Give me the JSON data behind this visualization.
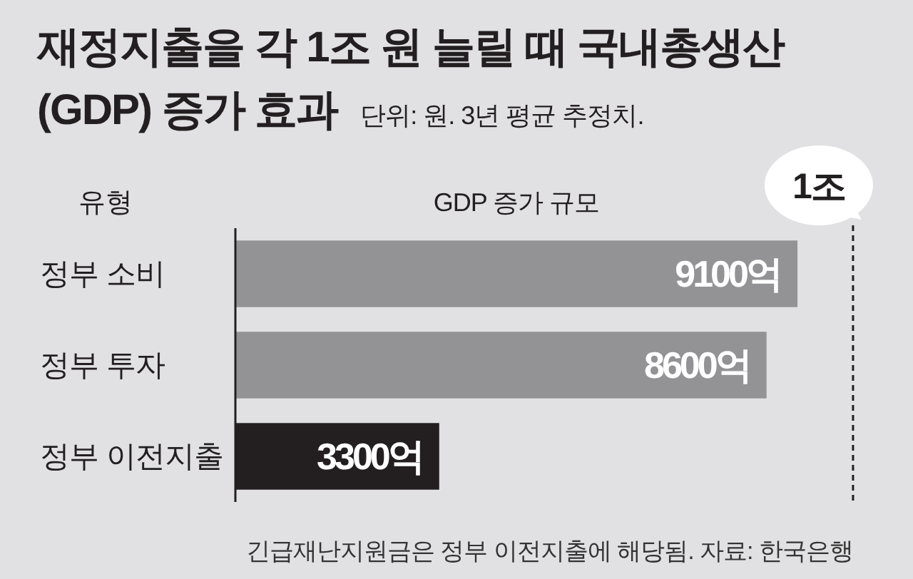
{
  "chart_data": {
    "type": "bar",
    "orientation": "horizontal",
    "title": "재정지출을 각 1조 원 늘릴 때 국내총생산 (GDP) 증가 효과",
    "subtitle": "단위: 원. 3년 평균 추정치.",
    "ylabel": "유형",
    "xlabel": "GDP 증가 규모",
    "categories": [
      "정부 소비",
      "정부 투자",
      "정부 이전지출"
    ],
    "values": [
      9100,
      8600,
      3300
    ],
    "colors": [
      "#939396",
      "#939396",
      "#231f20"
    ],
    "value_labels": [
      "9100억",
      "8600억",
      "3300억"
    ],
    "ref_lines": [
      {
        "axis": "x",
        "value": 10000,
        "label": "1조",
        "color": "#231f20",
        "line_style": "dashed"
      }
    ],
    "annotations": [
      "긴급재난지원금은 정부 이전지출에 해당됨. 자료: 한국은행"
    ]
  }
}
